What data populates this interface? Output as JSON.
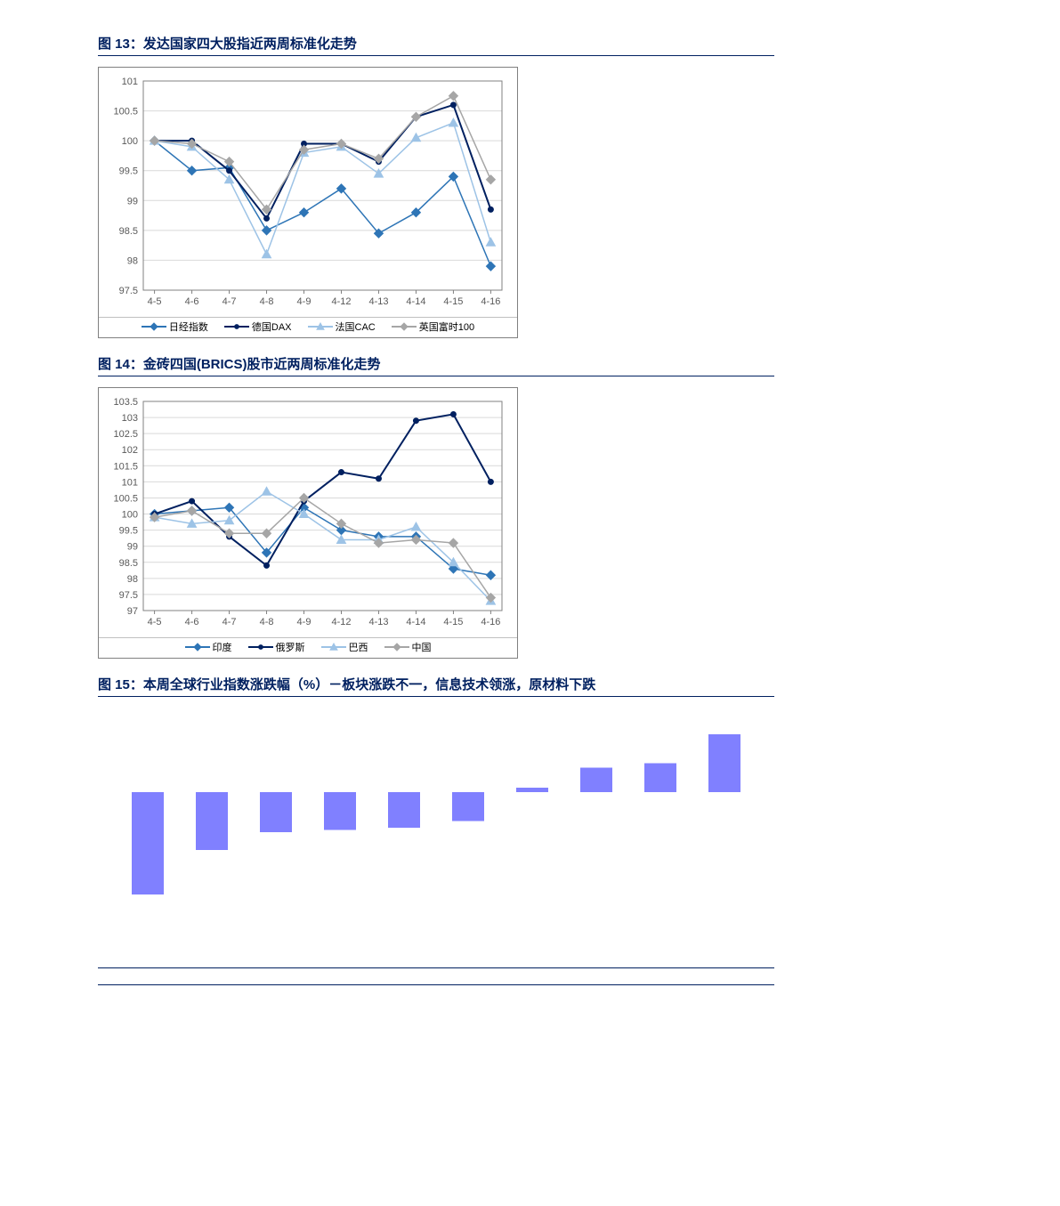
{
  "fig13": {
    "title": "图 13：发达国家四大股指近两周标准化走势",
    "type": "line",
    "categories": [
      "4-5",
      "4-6",
      "4-7",
      "4-8",
      "4-9",
      "4-12",
      "4-13",
      "4-14",
      "4-15",
      "4-16"
    ],
    "ylim": [
      97.5,
      101
    ],
    "ytick_step": 0.5,
    "grid_color": "#d9d9d9",
    "axis_color": "#808080",
    "label_fontsize": 11,
    "background_color": "#ffffff",
    "series": [
      {
        "name": "日经指数",
        "color": "#2e75b6",
        "marker": "diamond",
        "ms": 5,
        "lw": 1.5,
        "data": [
          100,
          99.5,
          99.55,
          98.5,
          98.8,
          99.2,
          98.45,
          98.8,
          99.4,
          97.9
        ]
      },
      {
        "name": "德国DAX",
        "color": "#002060",
        "marker": "circle",
        "ms": 5,
        "lw": 2,
        "data": [
          100,
          100,
          99.5,
          98.7,
          99.95,
          99.95,
          99.65,
          100.4,
          100.6,
          98.85
        ]
      },
      {
        "name": "法国CAC",
        "color": "#9dc3e6",
        "marker": "triangle",
        "ms": 5,
        "lw": 1.5,
        "data": [
          100,
          99.9,
          99.35,
          98.1,
          99.8,
          99.9,
          99.45,
          100.05,
          100.3,
          98.3
        ]
      },
      {
        "name": "英国富时100",
        "color": "#a6a6a6",
        "marker": "diamond",
        "ms": 5,
        "lw": 1.5,
        "data": [
          100,
          99.95,
          99.65,
          98.85,
          99.85,
          99.95,
          99.7,
          100.4,
          100.75,
          99.35
        ]
      }
    ]
  },
  "fig14": {
    "title": "图 14：金砖四国(BRICS)股市近两周标准化走势",
    "type": "line",
    "categories": [
      "4-5",
      "4-6",
      "4-7",
      "4-8",
      "4-9",
      "4-12",
      "4-13",
      "4-14",
      "4-15",
      "4-16"
    ],
    "ylim": [
      97,
      103.5
    ],
    "ytick_step": 0.5,
    "grid_color": "#d9d9d9",
    "axis_color": "#808080",
    "label_fontsize": 11,
    "background_color": "#ffffff",
    "series": [
      {
        "name": "印度",
        "color": "#2e75b6",
        "marker": "diamond",
        "ms": 5,
        "lw": 1.5,
        "data": [
          100,
          100.1,
          100.2,
          98.8,
          100.2,
          99.5,
          99.3,
          99.3,
          98.3,
          98.1
        ]
      },
      {
        "name": "俄罗斯",
        "color": "#002060",
        "marker": "circle",
        "ms": 5,
        "lw": 2,
        "data": [
          100,
          100.4,
          99.3,
          98.4,
          100.4,
          101.3,
          101.1,
          102.9,
          103.1,
          101.0
        ]
      },
      {
        "name": "巴西",
        "color": "#9dc3e6",
        "marker": "triangle",
        "ms": 5,
        "lw": 1.5,
        "data": [
          99.9,
          99.7,
          99.8,
          100.7,
          100.0,
          99.2,
          99.2,
          99.6,
          98.5,
          97.3
        ]
      },
      {
        "name": "中国",
        "color": "#a6a6a6",
        "marker": "diamond",
        "ms": 5,
        "lw": 1.5,
        "data": [
          99.9,
          100.1,
          99.4,
          99.4,
          100.5,
          99.7,
          99.1,
          99.2,
          99.1,
          97.4
        ]
      }
    ]
  },
  "fig15": {
    "title": "图 15：本周全球行业指数涨跌幅（%）－板块涨跌不一，信息技术领涨，原材料下跌",
    "type": "bar",
    "bar_color": "#8080ff",
    "background_color": "#ffffff",
    "ylim": [
      -2.5,
      1.5
    ],
    "bar_width": 0.5,
    "values": [
      -2.3,
      -1.3,
      -0.9,
      -0.85,
      -0.8,
      -0.65,
      0.1,
      0.55,
      0.65,
      1.3
    ]
  }
}
